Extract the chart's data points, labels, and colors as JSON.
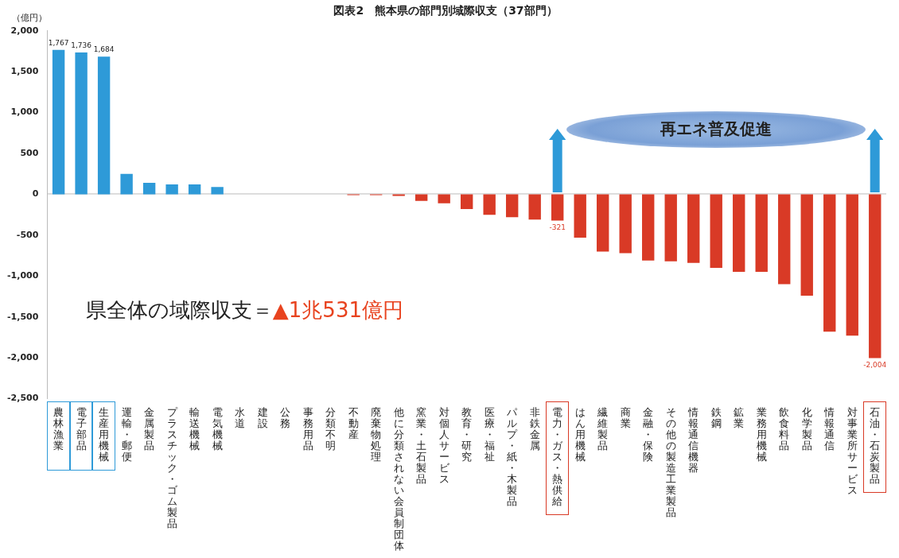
{
  "chart_data": {
    "type": "bar",
    "title": "図表2　熊本県の部門別域際収支（37部門）",
    "ylabel": "（億円）",
    "categories": [
      "農林漁業",
      "電子部品",
      "生産用機械",
      "運輸・郵便",
      "金属製品",
      "プラスチック・ゴム製品",
      "輸送機械",
      "電気機械",
      "水道",
      "建設",
      "公務",
      "事務用品",
      "分類不明",
      "不動産",
      "廃棄物処理",
      "他に分類されない会員制団体",
      "窯業・土石製品",
      "対個人サービス",
      "教育・研究",
      "医療・福祉",
      "パルプ・紙・木製品",
      "非鉄金属",
      "電力・ガス・熱供給",
      "はん用機械",
      "繊維製品",
      "商業",
      "金融・保険",
      "その他の製造工業製品",
      "情報通信機器",
      "鉄鋼",
      "鉱業",
      "業務用機械",
      "飲食料品",
      "化学製品",
      "情報通信",
      "対事業所サービス",
      "石油・石炭製品"
    ],
    "values": [
      1767,
      1736,
      1684,
      250,
      140,
      120,
      120,
      90,
      0,
      0,
      0,
      0,
      0,
      -10,
      -10,
      -20,
      -80,
      -110,
      -180,
      -250,
      -280,
      -310,
      -321,
      -530,
      -700,
      -720,
      -810,
      -820,
      -840,
      -900,
      -950,
      -950,
      -1100,
      -1240,
      -1680,
      -1730,
      -2004
    ],
    "colors": [
      "#2e9ad8",
      "#2e9ad8",
      "#2e9ad8",
      "#2e9ad8",
      "#2e9ad8",
      "#2e9ad8",
      "#2e9ad8",
      "#2e9ad8",
      "#2e9ad8",
      "#2e9ad8",
      "#2e9ad8",
      "#2e9ad8",
      "#2e9ad8",
      "#d93a26",
      "#d93a26",
      "#d93a26",
      "#d93a26",
      "#d93a26",
      "#d93a26",
      "#d93a26",
      "#d93a26",
      "#d93a26",
      "#d93a26",
      "#d93a26",
      "#d93a26",
      "#d93a26",
      "#d93a26",
      "#d93a26",
      "#d93a26",
      "#d93a26",
      "#d93a26",
      "#d93a26",
      "#d93a26",
      "#d93a26",
      "#d93a26",
      "#d93a26",
      "#d93a26"
    ],
    "value_labels": [
      "1,767",
      "1,736",
      "1,684",
      null,
      null,
      null,
      null,
      null,
      null,
      null,
      null,
      null,
      null,
      null,
      null,
      null,
      null,
      null,
      null,
      null,
      null,
      null,
      "-321",
      null,
      null,
      null,
      null,
      null,
      null,
      null,
      null,
      null,
      null,
      null,
      null,
      null,
      "-2,004"
    ],
    "ylim": [
      -2500,
      2000
    ],
    "yticks": [
      {
        "value": -2500,
        "label": "-2,500"
      },
      {
        "value": -2000,
        "label": "-2,000"
      },
      {
        "value": -1500,
        "label": "-1,500"
      },
      {
        "value": -1000,
        "label": "-1,000"
      },
      {
        "value": -500,
        "label": "-500"
      },
      0,
      {
        "value": 500,
        "label": "500"
      },
      {
        "value": 1000,
        "label": "1,000"
      },
      {
        "value": 1500,
        "label": "1,500"
      },
      {
        "value": 2000,
        "label": "2,000"
      }
    ],
    "annotations": [
      "県全体の域際収支＝",
      "▲1兆531億円",
      "再エネ普及促進"
    ],
    "legend": false
  }
}
